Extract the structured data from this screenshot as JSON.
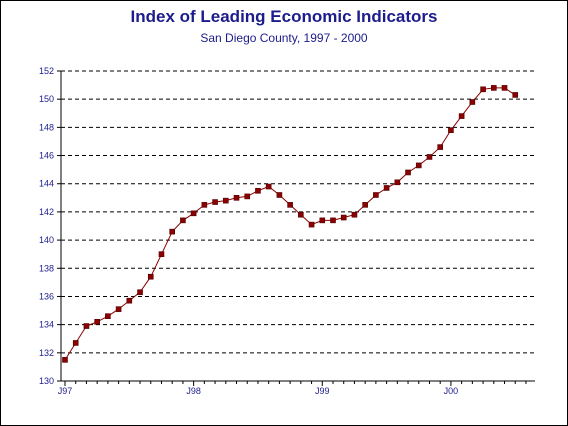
{
  "chart_data": {
    "type": "line",
    "title": "Index of Leading Economic Indicators",
    "subtitle": "San Diego County, 1997 - 2000",
    "xlabel": "",
    "ylabel": "",
    "ylim": [
      130,
      152
    ],
    "y_ticks": [
      130,
      132,
      134,
      136,
      138,
      140,
      142,
      144,
      146,
      148,
      150,
      152
    ],
    "x_tick_labels": [
      "J97",
      "J98",
      "J99",
      "J00"
    ],
    "grid": "horizontal dashed",
    "legend": "none",
    "line_color": "#8b0000",
    "series": [
      {
        "x": [
          "Jan 1997",
          "Feb 1997",
          "Mar 1997",
          "Apr 1997",
          "May 1997",
          "Jun 1997",
          "Jul 1997",
          "Aug 1997",
          "Sep 1997",
          "Oct 1997",
          "Nov 1997",
          "Dec 1997",
          "Jan 1998",
          "Feb 1998",
          "Mar 1998",
          "Apr 1998",
          "May 1998",
          "Jun 1998",
          "Jul 1998",
          "Aug 1998",
          "Sep 1998",
          "Oct 1998",
          "Nov 1998",
          "Dec 1998",
          "Jan 1999",
          "Feb 1999",
          "Mar 1999",
          "Apr 1999",
          "May 1999",
          "Jun 1999",
          "Jul 1999",
          "Aug 1999",
          "Sep 1999",
          "Oct 1999",
          "Nov 1999",
          "Dec 1999",
          "Jan 2000",
          "Feb 2000",
          "Mar 2000",
          "Apr 2000",
          "May 2000",
          "Jun 2000",
          "Jul 2000"
        ],
        "values": [
          131.5,
          132.7,
          133.9,
          134.2,
          134.6,
          135.1,
          135.7,
          136.3,
          137.4,
          139.0,
          140.6,
          141.4,
          141.9,
          142.5,
          142.7,
          142.8,
          143.0,
          143.1,
          143.5,
          143.8,
          143.2,
          142.5,
          141.8,
          141.1,
          141.4,
          141.4,
          141.6,
          141.8,
          142.5,
          143.2,
          143.7,
          144.1,
          144.8,
          145.3,
          145.9,
          146.6,
          147.8,
          148.8,
          149.8,
          150.7,
          150.8,
          150.8,
          150.3
        ]
      }
    ]
  }
}
